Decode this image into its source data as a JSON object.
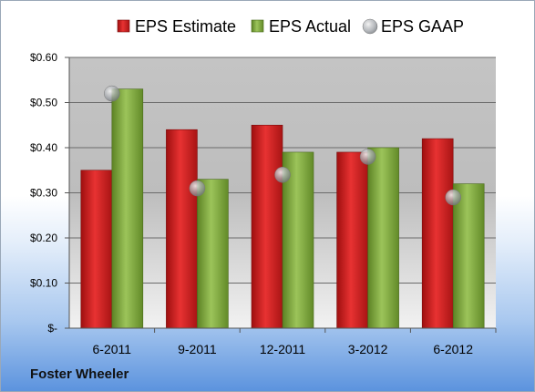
{
  "company": "Foster Wheeler",
  "chart_data": {
    "type": "bar",
    "categories": [
      "6-2011",
      "9-2011",
      "12-2011",
      "3-2012",
      "6-2012"
    ],
    "series": [
      {
        "name": "EPS Estimate",
        "type": "bar",
        "color": "#d42020",
        "values": [
          0.35,
          0.44,
          0.45,
          0.39,
          0.42
        ]
      },
      {
        "name": "EPS Actual",
        "type": "bar",
        "color": "#7ea83a",
        "values": [
          0.53,
          0.33,
          0.39,
          0.4,
          0.32
        ]
      },
      {
        "name": "EPS GAAP",
        "type": "marker",
        "color": "#9aa0a6",
        "values": [
          0.52,
          0.31,
          0.34,
          0.38,
          0.29
        ]
      }
    ],
    "ylim": [
      0,
      0.6
    ],
    "yticks": [
      0,
      0.1,
      0.2,
      0.3,
      0.4,
      0.5,
      0.6
    ],
    "yticklabels": [
      "$-",
      "$0.10",
      "$0.20",
      "$0.30",
      "$0.40",
      "$0.50",
      "$0.60"
    ],
    "grid": true,
    "legend": "top"
  }
}
